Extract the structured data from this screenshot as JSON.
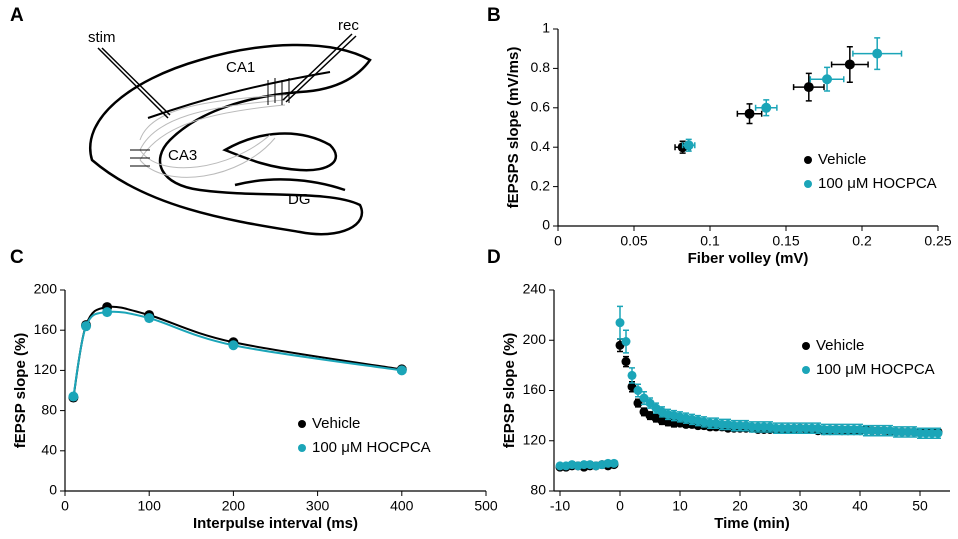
{
  "diagram": {
    "panel": "A",
    "labels": [
      "stim",
      "rec",
      "CA1",
      "CA3",
      "DG"
    ]
  },
  "chart_data": [
    {
      "type": "scatter",
      "panel": "B",
      "x_label": "Fiber volley (mV)",
      "y_label": "fEPSPS slope (mV/ms)",
      "xlim": [
        0,
        0.25
      ],
      "xticks": [
        0,
        0.05,
        0.1,
        0.15,
        0.2,
        0.25
      ],
      "ylim": [
        0,
        1
      ],
      "yticks": [
        0,
        0.2,
        0.4,
        0.6,
        0.8,
        1
      ],
      "series": [
        {
          "name": "Vehicle",
          "color": "#000000",
          "x": [
            0.082,
            0.126,
            0.165,
            0.192
          ],
          "values": [
            0.4,
            0.57,
            0.705,
            0.82
          ],
          "x_errors": [
            0.005,
            0.008,
            0.01,
            0.012
          ],
          "errors": [
            0.03,
            0.05,
            0.07,
            0.09
          ]
        },
        {
          "name": "100 μM HOCPCA",
          "color": "#1ba5b8",
          "x": [
            0.086,
            0.137,
            0.177,
            0.21
          ],
          "values": [
            0.41,
            0.6,
            0.745,
            0.875
          ],
          "x_errors": [
            0.004,
            0.007,
            0.011,
            0.016
          ],
          "errors": [
            0.03,
            0.04,
            0.06,
            0.08
          ]
        }
      ]
    },
    {
      "type": "line",
      "panel": "C",
      "x_label": "Interpulse interval (ms)",
      "y_label": "fEPSP slope (%)",
      "xlim": [
        0,
        500
      ],
      "xticks": [
        0,
        100,
        200,
        300,
        400,
        500
      ],
      "ylim": [
        0,
        200
      ],
      "yticks": [
        0,
        40,
        80,
        120,
        160,
        200
      ],
      "x": [
        10,
        25,
        50,
        100,
        200,
        400
      ],
      "series": [
        {
          "name": "Vehicle",
          "color": "#000000",
          "values": [
            93,
            165,
            183,
            175,
            148,
            121
          ],
          "errors": [
            3,
            3,
            3,
            3,
            3,
            3
          ]
        },
        {
          "name": "100 μM HOCPCA",
          "color": "#1ba5b8",
          "values": [
            94,
            164,
            178,
            172,
            145,
            120
          ],
          "errors": [
            3,
            3,
            3,
            3,
            3,
            3
          ]
        }
      ]
    },
    {
      "type": "scatter",
      "panel": "D",
      "x_label": "Time (min)",
      "y_label": "fEPSP slope (%)",
      "xlim": [
        -11,
        55
      ],
      "xticks": [
        -10,
        0,
        10,
        20,
        30,
        40,
        50
      ],
      "ylim": [
        80,
        240
      ],
      "yticks": [
        80,
        120,
        160,
        200,
        240
      ],
      "x": [
        -10,
        -9,
        -8,
        -7,
        -6,
        -5,
        -4,
        -3,
        -2,
        -1,
        0,
        1,
        2,
        3,
        4,
        5,
        6,
        7,
        8,
        9,
        10,
        11,
        12,
        13,
        14,
        15,
        16,
        17,
        18,
        19,
        20,
        21,
        22,
        23,
        24,
        25,
        26,
        27,
        28,
        29,
        30,
        31,
        32,
        33,
        34,
        35,
        36,
        37,
        38,
        39,
        40,
        41,
        42,
        43,
        44,
        45,
        46,
        47,
        48,
        49,
        50,
        51,
        52,
        53
      ],
      "series": [
        {
          "name": "Vehicle",
          "color": "#000000",
          "values": [
            99,
            99,
            100,
            100,
            99,
            100,
            100,
            101,
            100,
            101,
            196,
            183,
            163,
            150,
            143,
            140,
            138,
            136,
            135,
            134,
            134,
            133,
            133,
            132,
            132,
            131,
            131,
            131,
            130,
            130,
            130,
            130,
            130,
            129,
            129,
            129,
            129,
            129,
            129,
            129,
            130,
            129,
            129,
            128,
            128,
            128,
            129,
            128,
            128,
            128,
            128,
            129,
            128,
            128,
            128,
            127,
            127,
            127,
            127,
            127,
            127,
            127,
            127,
            127
          ],
          "errors": [
            2,
            2,
            2,
            2,
            2,
            2,
            2,
            2,
            2,
            2,
            5,
            4,
            4,
            3,
            3,
            3,
            3,
            3,
            3,
            3,
            2,
            2,
            2,
            2,
            2,
            2,
            2,
            2,
            2,
            2,
            2,
            2,
            2,
            2,
            2,
            2,
            2,
            2,
            2,
            2,
            2,
            2,
            2,
            2,
            2,
            2,
            2,
            2,
            2,
            2,
            2,
            2,
            2,
            2,
            2,
            2,
            2,
            2,
            2,
            2,
            2,
            2,
            2,
            2
          ]
        },
        {
          "name": "100 μM HOCPCA",
          "color": "#1ba5b8",
          "values": [
            100,
            100,
            101,
            100,
            101,
            101,
            100,
            101,
            102,
            102,
            214,
            199,
            172,
            160,
            154,
            150,
            146,
            143,
            141,
            140,
            139,
            138,
            137,
            136,
            135,
            134,
            134,
            133,
            133,
            132,
            132,
            132,
            131,
            131,
            131,
            131,
            130,
            130,
            130,
            130,
            130,
            130,
            130,
            130,
            129,
            129,
            129,
            129,
            129,
            129,
            129,
            128,
            128,
            128,
            128,
            128,
            127,
            127,
            127,
            127,
            126,
            126,
            126,
            126
          ],
          "errors": [
            2,
            2,
            2,
            2,
            2,
            2,
            2,
            2,
            2,
            2,
            13,
            9,
            6,
            5,
            5,
            4,
            4,
            4,
            4,
            4,
            4,
            4,
            4,
            4,
            4,
            4,
            4,
            4,
            4,
            4,
            4,
            4,
            4,
            4,
            4,
            4,
            4,
            4,
            4,
            4,
            4,
            4,
            4,
            4,
            4,
            4,
            4,
            4,
            4,
            4,
            4,
            4,
            4,
            4,
            4,
            4,
            4,
            4,
            4,
            4,
            4,
            4,
            4,
            4
          ]
        }
      ]
    }
  ]
}
